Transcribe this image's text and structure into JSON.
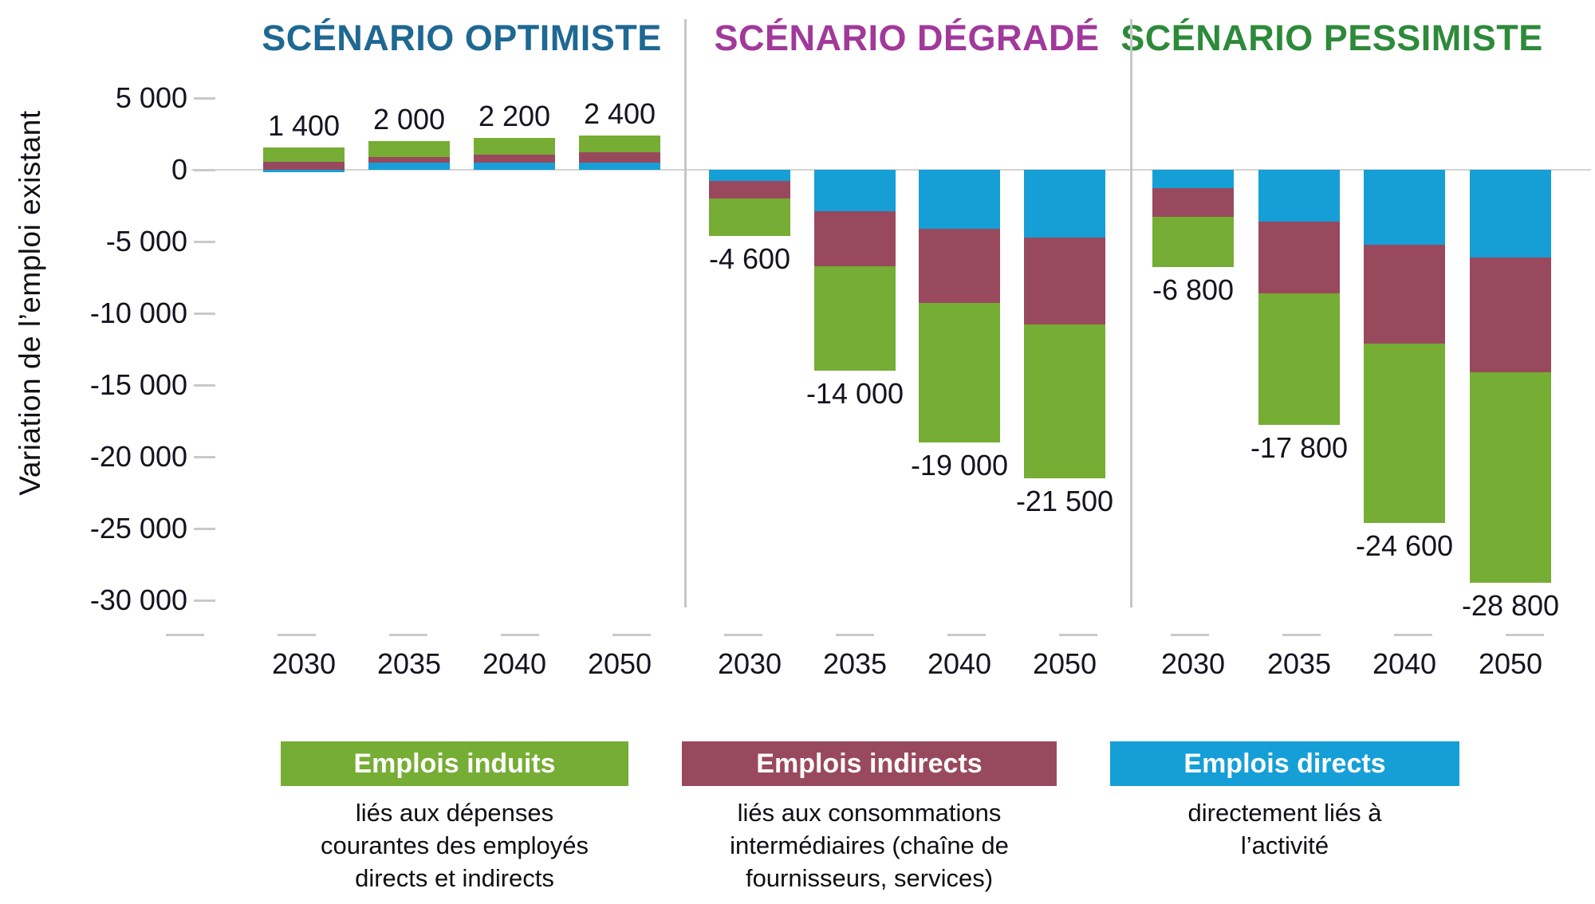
{
  "chart_data": {
    "type": "bar",
    "stacked": true,
    "orientation": "vertical",
    "title": "",
    "ylabel": "Variation de l’emploi existant",
    "xlabel": "",
    "ylim": [
      -30000,
      5000
    ],
    "grid": "zero-line-only",
    "y_ticks": [
      {
        "label": "5 000",
        "value": 5000
      },
      {
        "label": "0",
        "value": 0
      },
      {
        "label": "-5 000",
        "value": -5000
      },
      {
        "label": "-10 000",
        "value": -10000
      },
      {
        "label": "-15 000",
        "value": -15000
      },
      {
        "label": "-20 000",
        "value": -20000
      },
      {
        "label": "-25 000",
        "value": -25000
      },
      {
        "label": "-30 000",
        "value": -30000
      }
    ],
    "categories": [
      "2030",
      "2035",
      "2040",
      "2050"
    ],
    "series_order_from_zero": [
      "directs",
      "indirects",
      "induits"
    ],
    "series_colors": {
      "induits": "#76AD34",
      "indirects": "#99495E",
      "directs": "#159FD6"
    },
    "panels": [
      {
        "title": "SCÉNARIO OPTIMISTE",
        "title_color": "#1E6892",
        "bars": [
          {
            "year": "2030",
            "total": 1400,
            "total_label": "1 400",
            "induits": 1000,
            "indirects": 550,
            "directs": -150
          },
          {
            "year": "2035",
            "total": 2000,
            "total_label": "2 000",
            "induits": 1100,
            "indirects": 400,
            "directs": 500
          },
          {
            "year": "2040",
            "total": 2200,
            "total_label": "2 200",
            "induits": 1150,
            "indirects": 550,
            "directs": 500
          },
          {
            "year": "2050",
            "total": 2400,
            "total_label": "2 400",
            "induits": 1200,
            "indirects": 700,
            "directs": 500
          }
        ]
      },
      {
        "title": "SCÉNARIO DÉGRADÉ",
        "title_color": "#A1399B",
        "bars": [
          {
            "year": "2030",
            "total": -4600,
            "total_label": "-4 600",
            "induits": -2600,
            "indirects": -1200,
            "directs": -800
          },
          {
            "year": "2035",
            "total": -14000,
            "total_label": "-14 000",
            "induits": -7300,
            "indirects": -3800,
            "directs": -2900
          },
          {
            "year": "2040",
            "total": -19000,
            "total_label": "-19 000",
            "induits": -9700,
            "indirects": -5200,
            "directs": -4100
          },
          {
            "year": "2050",
            "total": -21500,
            "total_label": "-21 500",
            "induits": -10700,
            "indirects": -6100,
            "directs": -4700
          }
        ]
      },
      {
        "title": "SCÉNARIO PESSIMISTE",
        "title_color": "#2D8A3A",
        "bars": [
          {
            "year": "2030",
            "total": -6800,
            "total_label": "-6 800",
            "induits": -3500,
            "indirects": -2000,
            "directs": -1300
          },
          {
            "year": "2035",
            "total": -17800,
            "total_label": "-17 800",
            "induits": -9200,
            "indirects": -5000,
            "directs": -3600
          },
          {
            "year": "2040",
            "total": -24600,
            "total_label": "-24 600",
            "induits": -12500,
            "indirects": -6900,
            "directs": -5200
          },
          {
            "year": "2050",
            "total": -28800,
            "total_label": "-28 800",
            "induits": -14700,
            "indirects": -8000,
            "directs": -6100
          }
        ]
      }
    ],
    "legend": {
      "position": "bottom",
      "items": [
        {
          "key": "induits",
          "label": "Emplois induits",
          "color": "#76AD34",
          "description": "liés aux dépenses\ncourantes des employés\ndirects et indirects"
        },
        {
          "key": "indirects",
          "label": "Emplois indirects",
          "color": "#99495E",
          "description": "liés aux consommations\nintermédiaires (chaîne de\nfournisseurs, services)"
        },
        {
          "key": "directs",
          "label": "Emplois directs",
          "color": "#159FD6",
          "description": "directement liés à\nl’activité"
        }
      ]
    }
  }
}
